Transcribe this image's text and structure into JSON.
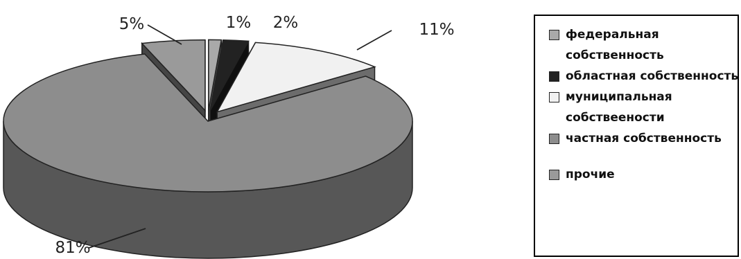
{
  "chart_data": {
    "type": "pie",
    "style": "3d exploded",
    "categories": [
      "федеральная собственность",
      "областная собственность",
      "муниципальная собствеености",
      "частная собственность",
      "прочие"
    ],
    "values": [
      1,
      2,
      11,
      81,
      5
    ],
    "data_labels": [
      "1%",
      "2%",
      "11%",
      "81%",
      "5%"
    ],
    "colors": [
      "#a9a9a9",
      "#222222",
      "#f1f1f1",
      "#8d8d8d",
      "#9a9a9a"
    ],
    "legend_position": "right",
    "legend": [
      {
        "label": "федеральная собственность",
        "color": "#a9a9a9"
      },
      {
        "label": "областная собственность",
        "color": "#222222"
      },
      {
        "label": "муниципальная собствеености",
        "color": "#f1f1f1"
      },
      {
        "label": "частная собственность",
        "color": "#8d8d8d"
      },
      {
        "label": "прочие",
        "color": "#9a9a9a"
      }
    ]
  }
}
